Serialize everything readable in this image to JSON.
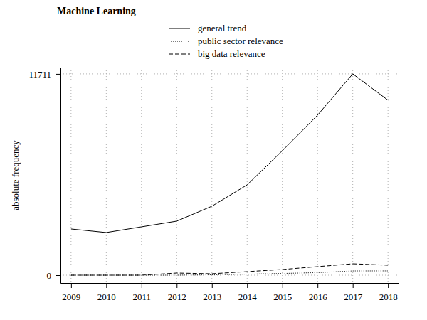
{
  "chart_data": {
    "type": "line",
    "title": "Machine Learning",
    "y_label": "absolute frequency",
    "x": [
      2009,
      2010,
      2011,
      2012,
      2013,
      2014,
      2015,
      2016,
      2017,
      2018
    ],
    "series": [
      {
        "name": "general trend",
        "color": "#000000",
        "line_style": "solid",
        "values": [
          2690,
          2483,
          2814,
          3145,
          4014,
          5255,
          7242,
          9311,
          11711,
          10180
        ]
      },
      {
        "name": "public sector relevance",
        "color": "#000000",
        "line_style": "dotted",
        "values": [
          0,
          0,
          0,
          0,
          20,
          60,
          100,
          150,
          248,
          250
        ]
      },
      {
        "name": "big data relevance",
        "color": "#000000",
        "line_style": "dashed",
        "values": [
          0,
          0,
          0,
          124,
          83,
          207,
          331,
          497,
          662,
          580
        ]
      }
    ],
    "xlim": [
      2008.7,
      2018.3
    ],
    "xticks": [
      2009,
      2010,
      2011,
      2012,
      2013,
      2014,
      2015,
      2016,
      2017,
      2018
    ],
    "ylim": [
      -455,
      12080
    ],
    "yticks": [
      0,
      11711
    ],
    "grid": true,
    "legend": "top"
  }
}
